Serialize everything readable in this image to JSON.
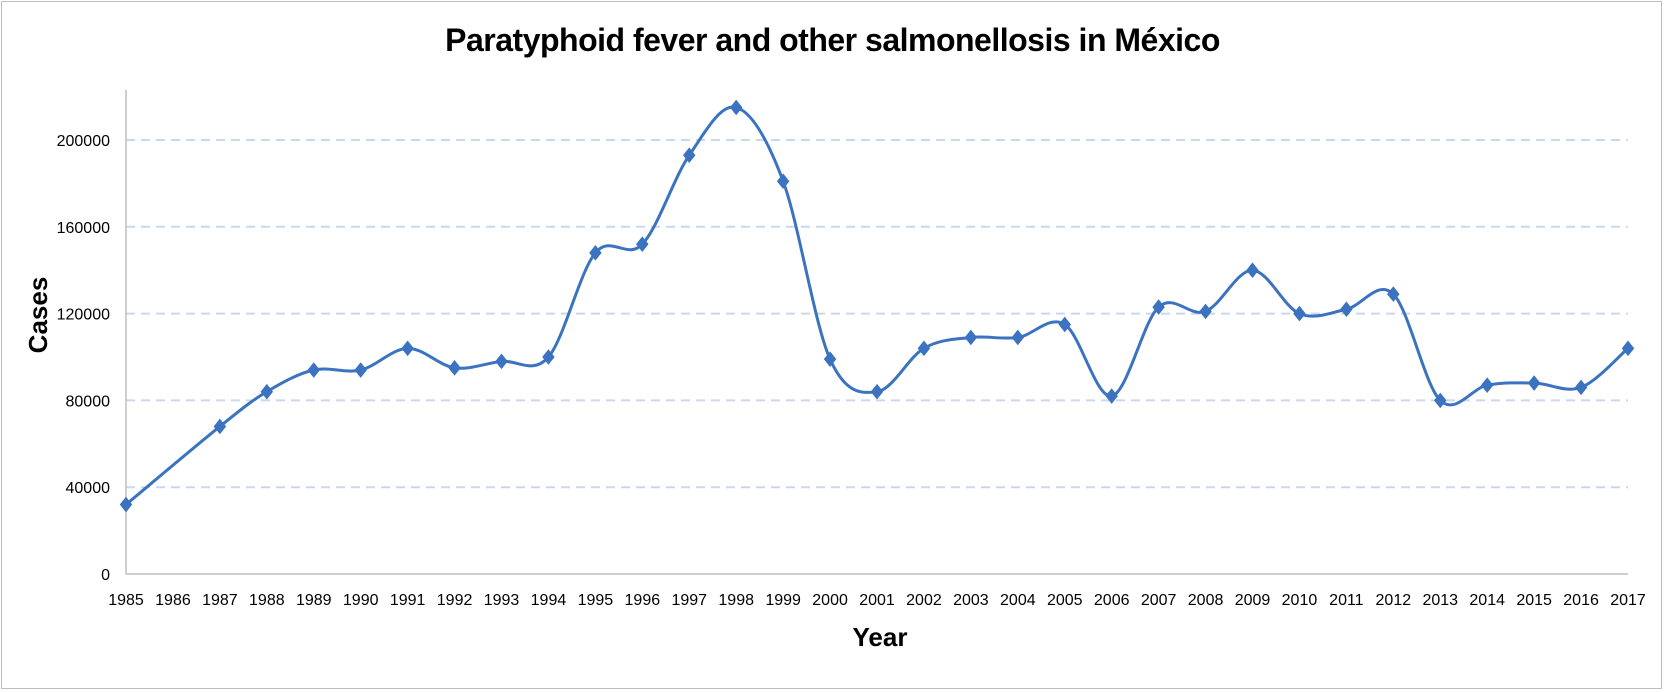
{
  "chart_data": {
    "type": "line",
    "title": "Paratyphoid fever and other salmonellosis in México",
    "xlabel": "Year",
    "ylabel": "Cases",
    "ylim": [
      0,
      220000
    ],
    "yticks": [
      0,
      40000,
      80000,
      120000,
      160000,
      200000
    ],
    "ytick_labels": [
      "0",
      "40000",
      "80000",
      "120000",
      "160000",
      "200000"
    ],
    "categories": [
      "1985",
      "1986",
      "1987",
      "1988",
      "1989",
      "1990",
      "1991",
      "1992",
      "1993",
      "1994",
      "1995",
      "1996",
      "1997",
      "1998",
      "1999",
      "2000",
      "2001",
      "2002",
      "2003",
      "2004",
      "2005",
      "2006",
      "2007",
      "2008",
      "2009",
      "2010",
      "2011",
      "2012",
      "2013",
      "2014",
      "2015",
      "2016",
      "2017"
    ],
    "series": [
      {
        "name": "Cases",
        "color": "#3b73c0",
        "values": [
          32000,
          null,
          68000,
          84000,
          94000,
          94000,
          104000,
          95000,
          98000,
          100000,
          148000,
          152000,
          193000,
          215000,
          181000,
          99000,
          84000,
          104000,
          109000,
          109000,
          115000,
          82000,
          123000,
          121000,
          140000,
          120000,
          122000,
          129000,
          80000,
          87000,
          88000,
          86000,
          104000
        ]
      }
    ],
    "grid": "dashed horizontal",
    "gridline_color": "#c9d7ef",
    "axis_color": "#bdbdbd"
  }
}
